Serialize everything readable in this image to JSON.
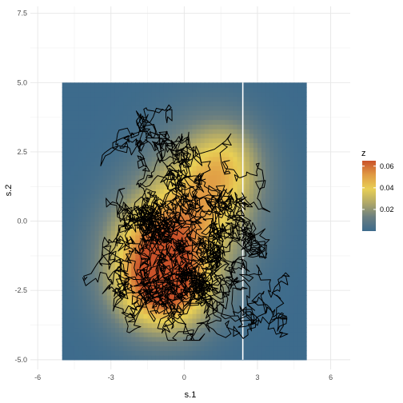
{
  "chart_data": {
    "type": "heatmap",
    "title": "",
    "xlabel": "s.1",
    "ylabel": "s.2",
    "xlim": [
      -6.3,
      6.8
    ],
    "ylim": [
      -5.35,
      7.75
    ],
    "x_ticks": [
      -6,
      -3,
      0,
      3,
      6
    ],
    "y_ticks": [
      -5.0,
      -2.5,
      0.0,
      2.5,
      5.0,
      7.5
    ],
    "x_tick_labels": [
      "-6",
      "-3",
      "0",
      "3",
      "6"
    ],
    "y_tick_labels": [
      "-5.0",
      "-2.5",
      "0.0",
      "2.5",
      "5.0",
      "7.5"
    ],
    "grid": true,
    "raster": {
      "x_range": [
        -5,
        5
      ],
      "y_range": [
        -5,
        5
      ],
      "gap_x": 2.4,
      "field": "mixture of gaussian bumps",
      "components": [
        {
          "mx": -1.2,
          "my": -1.3,
          "sx": 1.4,
          "sy": 1.5,
          "w": 0.055
        },
        {
          "mx": -0.6,
          "my": -2.6,
          "sx": 1.3,
          "sy": 1.0,
          "w": 0.035
        },
        {
          "mx": 0.8,
          "my": 0.8,
          "sx": 1.5,
          "sy": 1.7,
          "w": 0.04
        },
        {
          "mx": 1.8,
          "my": 2.2,
          "sx": 1.0,
          "sy": 1.0,
          "w": 0.02
        }
      ]
    },
    "legend": {
      "title": "z",
      "placement": "right",
      "ticks": [
        0.02,
        0.04,
        0.06
      ],
      "tick_labels": [
        "0.02",
        "0.04",
        "0.06"
      ],
      "range": [
        0.0,
        0.065
      ],
      "colors": [
        "#3d6b8c",
        "#6b7f80",
        "#b0a868",
        "#e8cf55",
        "#e09a44",
        "#c9522a"
      ]
    },
    "path": {
      "name": "",
      "color": "#000000",
      "type": "random walk",
      "start": [
        0.2,
        0.5
      ],
      "steps": 3200,
      "step_size": 0.26
    }
  }
}
